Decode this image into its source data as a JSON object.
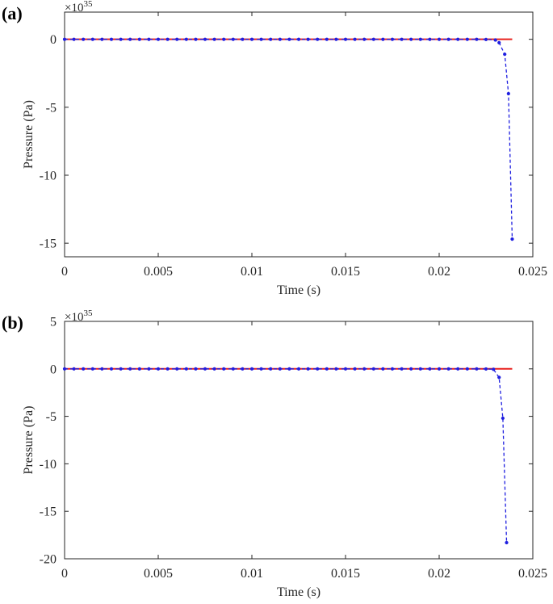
{
  "colors": {
    "reference_line": "#e8211d",
    "computed_series": "#1f1fe0",
    "axes": "#262626"
  },
  "chart_data": [
    {
      "type": "line",
      "panel_label": "(a)",
      "xlabel": "Time (s)",
      "ylabel": "Pressure (Pa)",
      "y_exponent_base": "×10",
      "y_exponent_power": "35",
      "xlim": [
        0,
        0.025
      ],
      "ylim": [
        -16,
        2
      ],
      "xticks": [
        0,
        0.005,
        0.01,
        0.015,
        0.02,
        0.025
      ],
      "xtick_labels": [
        "0",
        "0.005",
        "0.01",
        "0.015",
        "0.02",
        "0.025"
      ],
      "yticks": [
        -15,
        -10,
        -5,
        0
      ],
      "ytick_labels": [
        "-15",
        "-10",
        "-5",
        "0"
      ],
      "grid": false,
      "series": [
        {
          "style": "solid-line",
          "x": [
            0,
            0.0239
          ],
          "y": [
            0,
            0
          ]
        },
        {
          "style": "dashed-dots",
          "x": [
            0,
            0.0005,
            0.001,
            0.0015,
            0.002,
            0.0025,
            0.003,
            0.0035,
            0.004,
            0.0045,
            0.005,
            0.0055,
            0.006,
            0.0065,
            0.007,
            0.0075,
            0.008,
            0.0085,
            0.009,
            0.0095,
            0.01,
            0.0105,
            0.011,
            0.0115,
            0.012,
            0.0125,
            0.013,
            0.0135,
            0.014,
            0.0145,
            0.015,
            0.0155,
            0.016,
            0.0165,
            0.017,
            0.0175,
            0.018,
            0.0185,
            0.019,
            0.0195,
            0.02,
            0.0205,
            0.021,
            0.0215,
            0.022,
            0.0225,
            0.023,
            0.0232,
            0.0235,
            0.0237,
            0.0239
          ],
          "y": [
            0,
            0,
            0,
            0,
            0,
            0,
            0,
            0,
            0,
            0,
            0,
            0,
            0,
            0,
            0,
            0,
            0,
            0,
            0,
            0,
            0,
            0,
            0,
            0,
            0,
            0,
            0,
            0,
            0,
            0,
            0,
            0,
            0,
            0,
            0,
            0,
            0,
            0,
            0,
            0,
            0,
            0,
            0,
            0,
            0,
            -0.01,
            -0.05,
            -0.25,
            -1.1,
            -4.0,
            -14.7
          ]
        }
      ]
    },
    {
      "type": "line",
      "panel_label": "(b)",
      "xlabel": "Time (s)",
      "ylabel": "Pressure (Pa)",
      "y_exponent_base": "×10",
      "y_exponent_power": "35",
      "xlim": [
        0,
        0.025
      ],
      "ylim": [
        -20,
        5
      ],
      "xticks": [
        0,
        0.005,
        0.01,
        0.015,
        0.02,
        0.025
      ],
      "xtick_labels": [
        "0",
        "0.005",
        "0.01",
        "0.015",
        "0.02",
        "0.025"
      ],
      "yticks": [
        -20,
        -15,
        -10,
        -5,
        0,
        5
      ],
      "ytick_labels": [
        "-20",
        "-15",
        "-10",
        "-5",
        "0",
        "5"
      ],
      "grid": false,
      "series": [
        {
          "style": "solid-line",
          "x": [
            0,
            0.0239
          ],
          "y": [
            0,
            0
          ]
        },
        {
          "style": "dashed-dots",
          "x": [
            0,
            0.0005,
            0.001,
            0.0015,
            0.002,
            0.0025,
            0.003,
            0.0035,
            0.004,
            0.0045,
            0.005,
            0.0055,
            0.006,
            0.0065,
            0.007,
            0.0075,
            0.008,
            0.0085,
            0.009,
            0.0095,
            0.01,
            0.0105,
            0.011,
            0.0115,
            0.012,
            0.0125,
            0.013,
            0.0135,
            0.014,
            0.0145,
            0.015,
            0.0155,
            0.016,
            0.0165,
            0.017,
            0.0175,
            0.018,
            0.0185,
            0.019,
            0.0195,
            0.02,
            0.0205,
            0.021,
            0.0215,
            0.022,
            0.0225,
            0.0229,
            0.0232,
            0.0234,
            0.0236
          ],
          "y": [
            0,
            0,
            0,
            0,
            0,
            0,
            0,
            0,
            0,
            0,
            0,
            0,
            0,
            0,
            0,
            0,
            0,
            0,
            0,
            0,
            0,
            0,
            0,
            0,
            0,
            0,
            0,
            0,
            0,
            0,
            0,
            0,
            0,
            0,
            0,
            0,
            0,
            0,
            0,
            0,
            0,
            0,
            0,
            0,
            0,
            -0.01,
            -0.05,
            -0.9,
            -5.2,
            -18.3
          ]
        }
      ]
    }
  ]
}
